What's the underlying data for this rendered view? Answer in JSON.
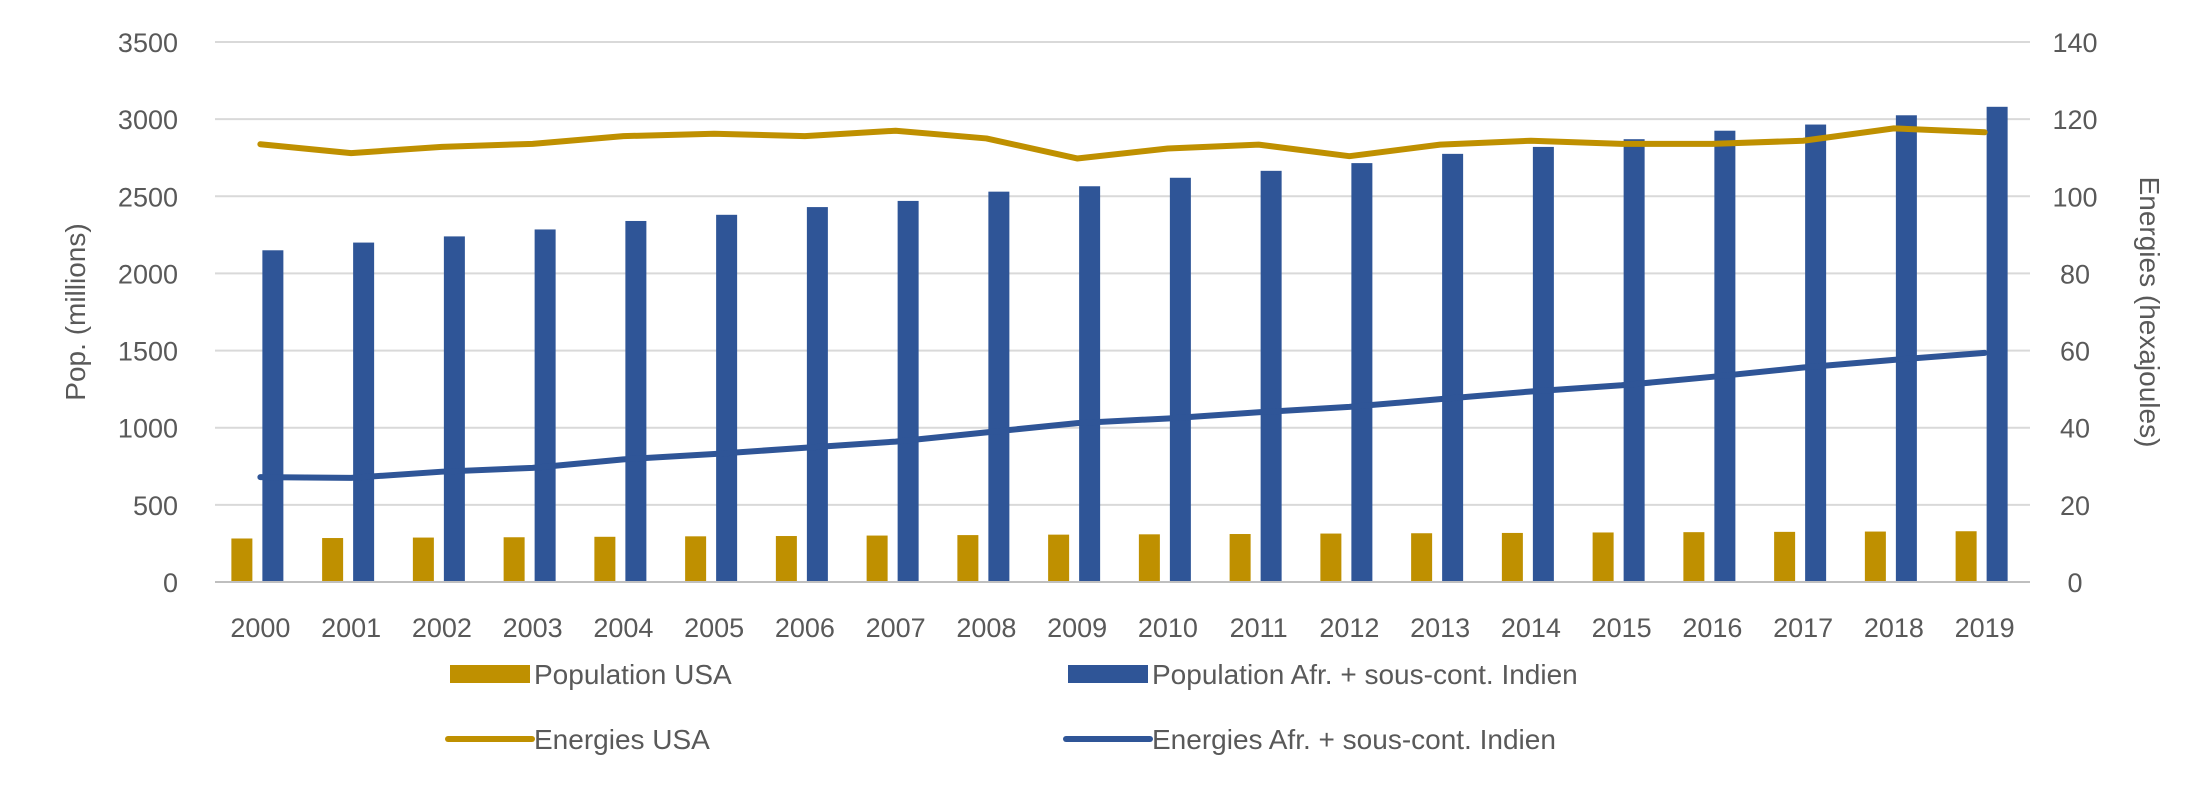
{
  "chart_data": {
    "type": "bar",
    "categories": [
      "2000",
      "2001",
      "2002",
      "2003",
      "2004",
      "2005",
      "2006",
      "2007",
      "2008",
      "2009",
      "2010",
      "2011",
      "2012",
      "2013",
      "2014",
      "2015",
      "2016",
      "2017",
      "2018",
      "2019"
    ],
    "title": "",
    "xlabel": "",
    "ylabel": "Pop. (millions)",
    "y2label": "Energies (hexajoules)",
    "ylim": [
      0,
      3500
    ],
    "y2lim": [
      0,
      140
    ],
    "yticks": [
      0,
      500,
      1000,
      1500,
      2000,
      2500,
      3000,
      3500
    ],
    "y2ticks": [
      0,
      20,
      40,
      60,
      80,
      100,
      120,
      140
    ],
    "grid": true,
    "legend_position": "bottom",
    "series": [
      {
        "name": "Population USA",
        "type": "bar",
        "axis": "left",
        "color": "#BF9000",
        "values": [
          282,
          285,
          288,
          290,
          293,
          296,
          298,
          301,
          304,
          307,
          309,
          311,
          314,
          316,
          318,
          321,
          323,
          325,
          327,
          329
        ]
      },
      {
        "name": "Population Afr. + sous-cont. Indien",
        "type": "bar",
        "axis": "left",
        "color": "#2F5597",
        "values": [
          2150,
          2200,
          2240,
          2285,
          2340,
          2380,
          2430,
          2470,
          2530,
          2565,
          2620,
          2665,
          2715,
          2775,
          2820,
          2870,
          2925,
          2965,
          3025,
          3080
        ]
      },
      {
        "name": "Energies USA",
        "type": "line",
        "axis": "right",
        "color": "#BF9000",
        "values": [
          113.5,
          111.2,
          112.8,
          113.6,
          115.6,
          116.2,
          115.6,
          117.0,
          115.0,
          109.8,
          112.4,
          113.4,
          110.4,
          113.4,
          114.4,
          113.6,
          113.6,
          114.4,
          117.6,
          116.6
        ]
      },
      {
        "name": "Energies Afr. + sous-cont. Indien",
        "type": "line",
        "axis": "right",
        "color": "#2F5597",
        "values": [
          27.2,
          27.0,
          28.6,
          29.6,
          31.8,
          33.2,
          34.8,
          36.4,
          38.8,
          41.2,
          42.4,
          44.0,
          45.4,
          47.4,
          49.4,
          51.0,
          53.2,
          55.6,
          57.6,
          59.4
        ]
      }
    ]
  }
}
